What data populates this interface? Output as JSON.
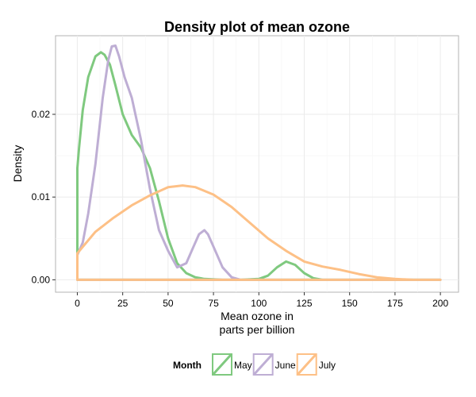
{
  "chart_data": {
    "type": "line",
    "title": "Density plot of mean ozone",
    "xlabel_lines": [
      "Mean ozone in",
      "parts per billion"
    ],
    "ylabel": "Density",
    "xlim": [
      -12,
      210
    ],
    "ylim": [
      -0.0015,
      0.0295
    ],
    "x_ticks": [
      0,
      25,
      50,
      75,
      100,
      125,
      150,
      175,
      200
    ],
    "x_tick_labels": [
      "0",
      "25",
      "50",
      "75",
      "100",
      "125",
      "150",
      "175",
      "200"
    ],
    "y_ticks": [
      0.0,
      0.01,
      0.02
    ],
    "y_tick_labels": [
      "0.00",
      "0.01",
      "0.02"
    ],
    "grid": true,
    "legend": {
      "title": "Month",
      "position": "bottom"
    },
    "series": [
      {
        "name": "May",
        "color": "#7fc97f",
        "x": [
          0,
          0,
          1,
          3,
          6,
          10,
          13,
          15,
          18,
          21,
          25,
          30,
          35,
          40,
          45,
          50,
          55,
          60,
          65,
          70,
          80,
          90,
          100,
          105,
          110,
          115,
          120,
          125,
          130,
          135,
          140,
          150,
          160,
          180,
          200,
          0,
          0
        ],
        "y": [
          0.0115,
          0.0135,
          0.016,
          0.0205,
          0.0245,
          0.027,
          0.0275,
          0.0272,
          0.026,
          0.0235,
          0.02,
          0.0175,
          0.016,
          0.0135,
          0.0095,
          0.005,
          0.002,
          0.0008,
          0.0003,
          0.0001,
          0.0,
          0.0,
          0.0001,
          0.0005,
          0.0015,
          0.0022,
          0.0018,
          0.0008,
          0.0002,
          0.0,
          0.0,
          0.0,
          0.0,
          0.0,
          0.0,
          0.0,
          0.0115
        ]
      },
      {
        "name": "June",
        "color": "#beaed4",
        "x": [
          0,
          0,
          3,
          6,
          10,
          14,
          17,
          19,
          21,
          23,
          26,
          30,
          35,
          40,
          45,
          50,
          55,
          60,
          64,
          67,
          70,
          72,
          75,
          80,
          85,
          90,
          100,
          120,
          150,
          200,
          0,
          0
        ],
        "y": [
          0.0,
          0.003,
          0.0045,
          0.008,
          0.014,
          0.022,
          0.0265,
          0.0282,
          0.0283,
          0.027,
          0.0245,
          0.022,
          0.017,
          0.011,
          0.006,
          0.0035,
          0.0015,
          0.002,
          0.004,
          0.0055,
          0.006,
          0.0055,
          0.004,
          0.0015,
          0.0003,
          0.0,
          0.0,
          0.0,
          0.0,
          0.0,
          0.0,
          0.0
        ]
      },
      {
        "name": "July",
        "color": "#fdc086",
        "x": [
          0,
          0,
          10,
          20,
          30,
          40,
          50,
          58,
          65,
          75,
          85,
          95,
          105,
          115,
          125,
          135,
          145,
          155,
          165,
          175,
          185,
          200,
          0,
          0
        ],
        "y": [
          0.0,
          0.0032,
          0.0058,
          0.0075,
          0.009,
          0.0102,
          0.0112,
          0.0114,
          0.0112,
          0.0103,
          0.0088,
          0.0069,
          0.005,
          0.0035,
          0.0022,
          0.0016,
          0.0012,
          0.0007,
          0.0003,
          0.0001,
          0.0,
          0.0,
          0.0,
          0.0032
        ]
      }
    ]
  }
}
